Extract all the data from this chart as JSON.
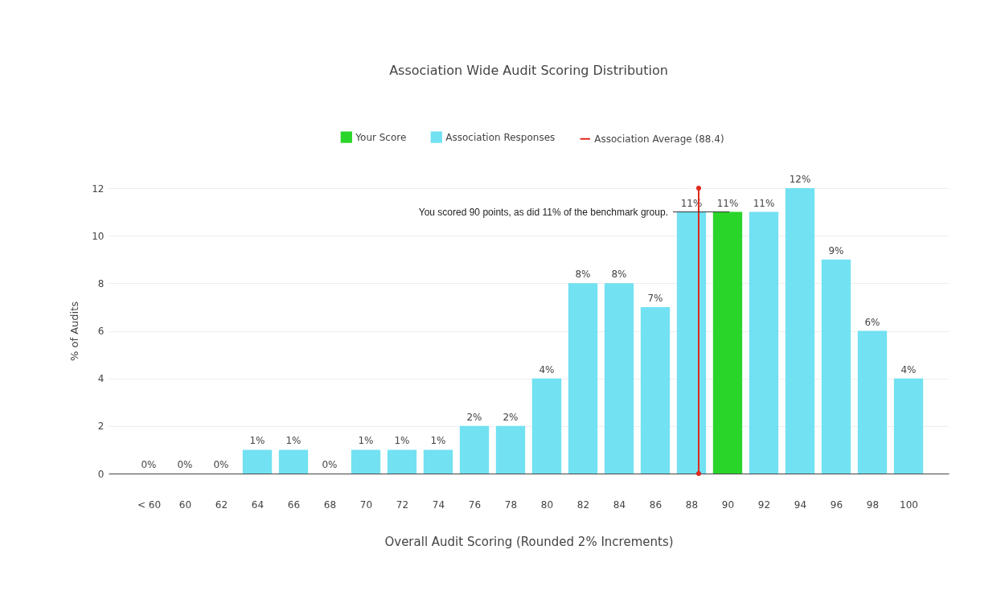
{
  "chart_data": {
    "type": "bar",
    "title": "Association Wide Audit Scoring Distribution",
    "xlabel": "Overall Audit Scoring (Rounded 2% Increments)",
    "ylabel": "% of Audits",
    "x": [
      58,
      60,
      62,
      64,
      66,
      68,
      70,
      72,
      74,
      76,
      78,
      80,
      82,
      84,
      86,
      88,
      90,
      92,
      94,
      96,
      98,
      100
    ],
    "xlim": [
      56,
      102
    ],
    "xticks": [
      {
        "value": 58,
        "label": "< 60"
      },
      60,
      62,
      64,
      66,
      68,
      70,
      72,
      74,
      76,
      78,
      80,
      82,
      84,
      86,
      88,
      90,
      92,
      94,
      96,
      98,
      100
    ],
    "ylim": [
      0,
      12
    ],
    "yticks": [
      0,
      2,
      4,
      6,
      8,
      10,
      12
    ],
    "grid": "y",
    "legend": "top",
    "marker": "circle",
    "series": [
      {
        "name": "Your Score",
        "color": "#2ad52a",
        "values": [
          null,
          null,
          null,
          null,
          null,
          null,
          null,
          null,
          null,
          null,
          null,
          null,
          null,
          null,
          null,
          null,
          11,
          null,
          null,
          null,
          null,
          null
        ],
        "value_labels": [
          null,
          null,
          null,
          null,
          null,
          null,
          null,
          null,
          null,
          null,
          null,
          null,
          null,
          null,
          null,
          null,
          "11%",
          null,
          null,
          null,
          null,
          null
        ]
      },
      {
        "name": "Association Responses",
        "color": "#72e1f2",
        "values": [
          0,
          0,
          0,
          1,
          1,
          0,
          1,
          1,
          1,
          2,
          2,
          4,
          8,
          8,
          7,
          11,
          null,
          11,
          12,
          9,
          6,
          4
        ],
        "value_labels": [
          "0%",
          "0%",
          "0%",
          "1%",
          "1%",
          "0%",
          "1%",
          "1%",
          "1%",
          "2%",
          "2%",
          "4%",
          "8%",
          "8%",
          "7%",
          "11%",
          null,
          "11%",
          "12%",
          "9%",
          "6%",
          "4%"
        ]
      },
      {
        "name": "Association Average (88.4)",
        "type": "line",
        "color": "#e0281d",
        "x": [
          88.4,
          88.4
        ],
        "values": [
          0,
          12
        ]
      }
    ],
    "annotations": [
      {
        "text": "You scored 90 points, as did 11% of the benchmark group.",
        "x": 90,
        "y": 11
      }
    ]
  }
}
